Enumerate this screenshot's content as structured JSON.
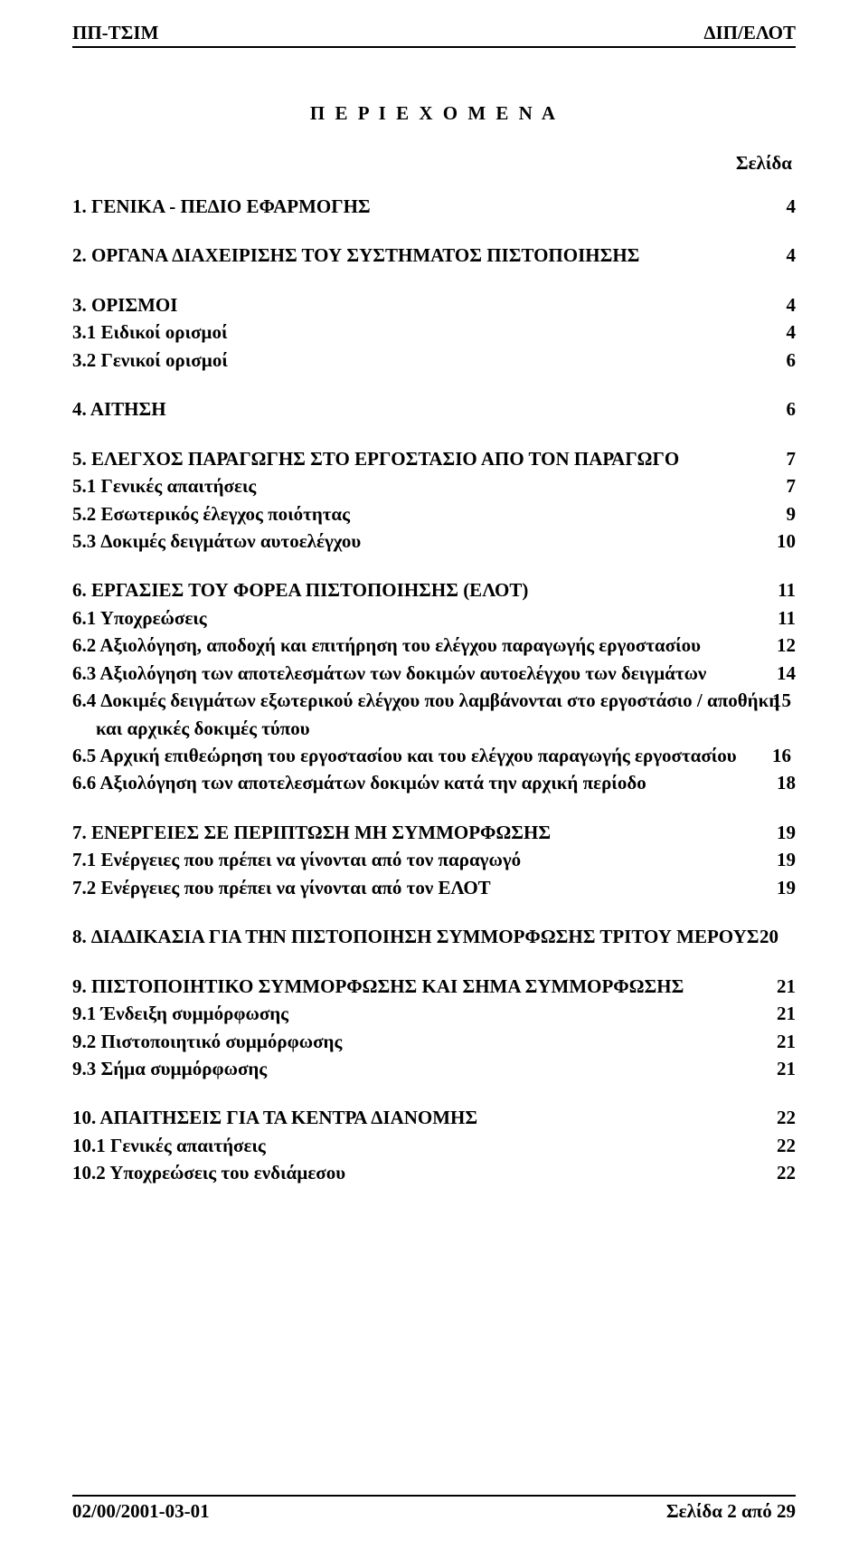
{
  "header": {
    "left": "ΠΠ-ΤΣΙΜ",
    "right": "∆ΙΠ/ΕΛΟΤ"
  },
  "title": "Π Ε Ρ Ι Ε Χ Ο Μ Ε Ν Α",
  "page_label": "Σελίδα",
  "toc": [
    {
      "t": "1. ΓΕΝΙΚΑ - ΠΕ∆ΙΟ ΕΦΑΡΜΟΓΗΣ",
      "p": "4"
    },
    {
      "gap": true
    },
    {
      "t": "2. ΟΡΓΑΝΑ ∆ΙΑΧΕΙΡΙΣΗΣ ΤΟΥ ΣΥΣΤΗΜΑΤΟΣ ΠΙΣΤΟΠΟΙΗΣΗΣ",
      "p": "4"
    },
    {
      "gap": true
    },
    {
      "t": "3. ΟΡΙΣΜΟΙ",
      "p": "4"
    },
    {
      "t": "3.1 Ειδικοί ορισµοί",
      "p": "4"
    },
    {
      "t": "3.2 Γενικοί ορισµοί",
      "p": "6"
    },
    {
      "gap": true
    },
    {
      "t": "4. ΑΙΤΗΣΗ",
      "p": "6"
    },
    {
      "gap": true
    },
    {
      "t": "5. ΕΛΕΓΧΟΣ ΠΑΡΑΓΩΓΗΣ ΣΤΟ ΕΡΓΟΣΤΑΣΙΟ ΑΠΟ ΤΟΝ ΠΑΡΑΓΩΓΟ",
      "p": "7"
    },
    {
      "t": "5.1 Γενικές απαιτήσεις",
      "p": "7"
    },
    {
      "t": "5.2 Εσωτερικός έλεγχος ποιότητας",
      "p": "9"
    },
    {
      "t": "5.3 ∆οκιµές δειγµάτων αυτοελέγχου",
      "p": "10"
    },
    {
      "gap": true
    },
    {
      "t": "6. ΕΡΓΑΣΙΕΣ ΤΟΥ ΦΟΡΕΑ ΠΙΣΤΟΠΟΙΗΣΗΣ (ΕΛΟΤ)",
      "p": "11"
    },
    {
      "t": "6.1 Υποχρεώσεις",
      "p": "11"
    },
    {
      "t": "6.2 Αξιολόγηση, αποδοχή και επιτήρηση του ελέγχου παραγωγής εργοστασίου",
      "p": "12"
    },
    {
      "t": "6.3 Αξιολόγηση των αποτελεσµάτων των δοκιµών αυτοελέγχου των δειγµάτων",
      "p": "14"
    },
    {
      "t": "6.4 ∆οκιµές δειγµάτων εξωτερικού ελέγχου που λαµβάνονται στο εργοστάσιο /  αποθήκη και αρχικές δοκιµές τύπου",
      "p": "15",
      "cls": "indent"
    },
    {
      "t": "6.5 Αρχική επιθεώρηση του εργοστασίου και του ελέγχου παραγωγής εργοστασίου",
      "p": "16",
      "cls": "indent"
    },
    {
      "t": "6.6 Αξιολόγηση των αποτελεσµάτων δοκιµών κατά την αρχική περίοδο",
      "p": "18"
    },
    {
      "gap": true
    },
    {
      "t": "7. ΕΝΕΡΓΕΙΕΣ ΣΕ ΠΕΡΙΠΤΩΣΗ ΜΗ ΣΥΜΜΟΡΦΩΣΗΣ",
      "p": "19"
    },
    {
      "t": "7.1 Ενέργειες που πρέπει να γίνονται από τον παραγωγό",
      "p": "19"
    },
    {
      "t": "7.2 Ενέργειες που πρέπει να γίνονται από τον ΕΛΟΤ",
      "p": "19"
    },
    {
      "gap": true
    },
    {
      "t": "8. ∆ΙΑ∆ΙΚΑΣΙΑ ΓΙΑ ΤΗΝ ΠΙΣΤΟΠΟΙΗΣΗ ΣΥΜΜΟΡΦΩΣΗΣ ΤΡΙΤΟΥ ΜΕΡΟΥΣ",
      "p": "20",
      "cls": "indent2"
    },
    {
      "gap": true
    },
    {
      "t": "9. ΠΙΣΤΟΠΟΙΗΤΙΚΟ ΣΥΜΜΟΡΦΩΣΗΣ ΚΑΙ ΣΗΜΑ ΣΥΜΜΟΡΦΩΣΗΣ",
      "p": "21"
    },
    {
      "t": "9.1 Ένδειξη συµµόρφωσης",
      "p": "21"
    },
    {
      "t": "9.2 Πιστοποιητικό συµµόρφωσης",
      "p": "21"
    },
    {
      "t": "9.3 Σήµα συµµόρφωσης",
      "p": "21"
    },
    {
      "gap": true
    },
    {
      "t": "10. ΑΠΑΙΤΗΣΕΙΣ ΓΙΑ ΤΑ ΚΕΝΤΡΑ ∆ΙΑΝΟΜΗΣ",
      "p": "22"
    },
    {
      "t": "10.1 Γενικές απαιτήσεις",
      "p": "22"
    },
    {
      "t": "10.2  Υποχρεώσεις του ενδιάµεσου",
      "p": "22"
    }
  ],
  "footer": {
    "left": "02/00/2001-03-01",
    "right": "Σελίδα 2 από 29"
  }
}
